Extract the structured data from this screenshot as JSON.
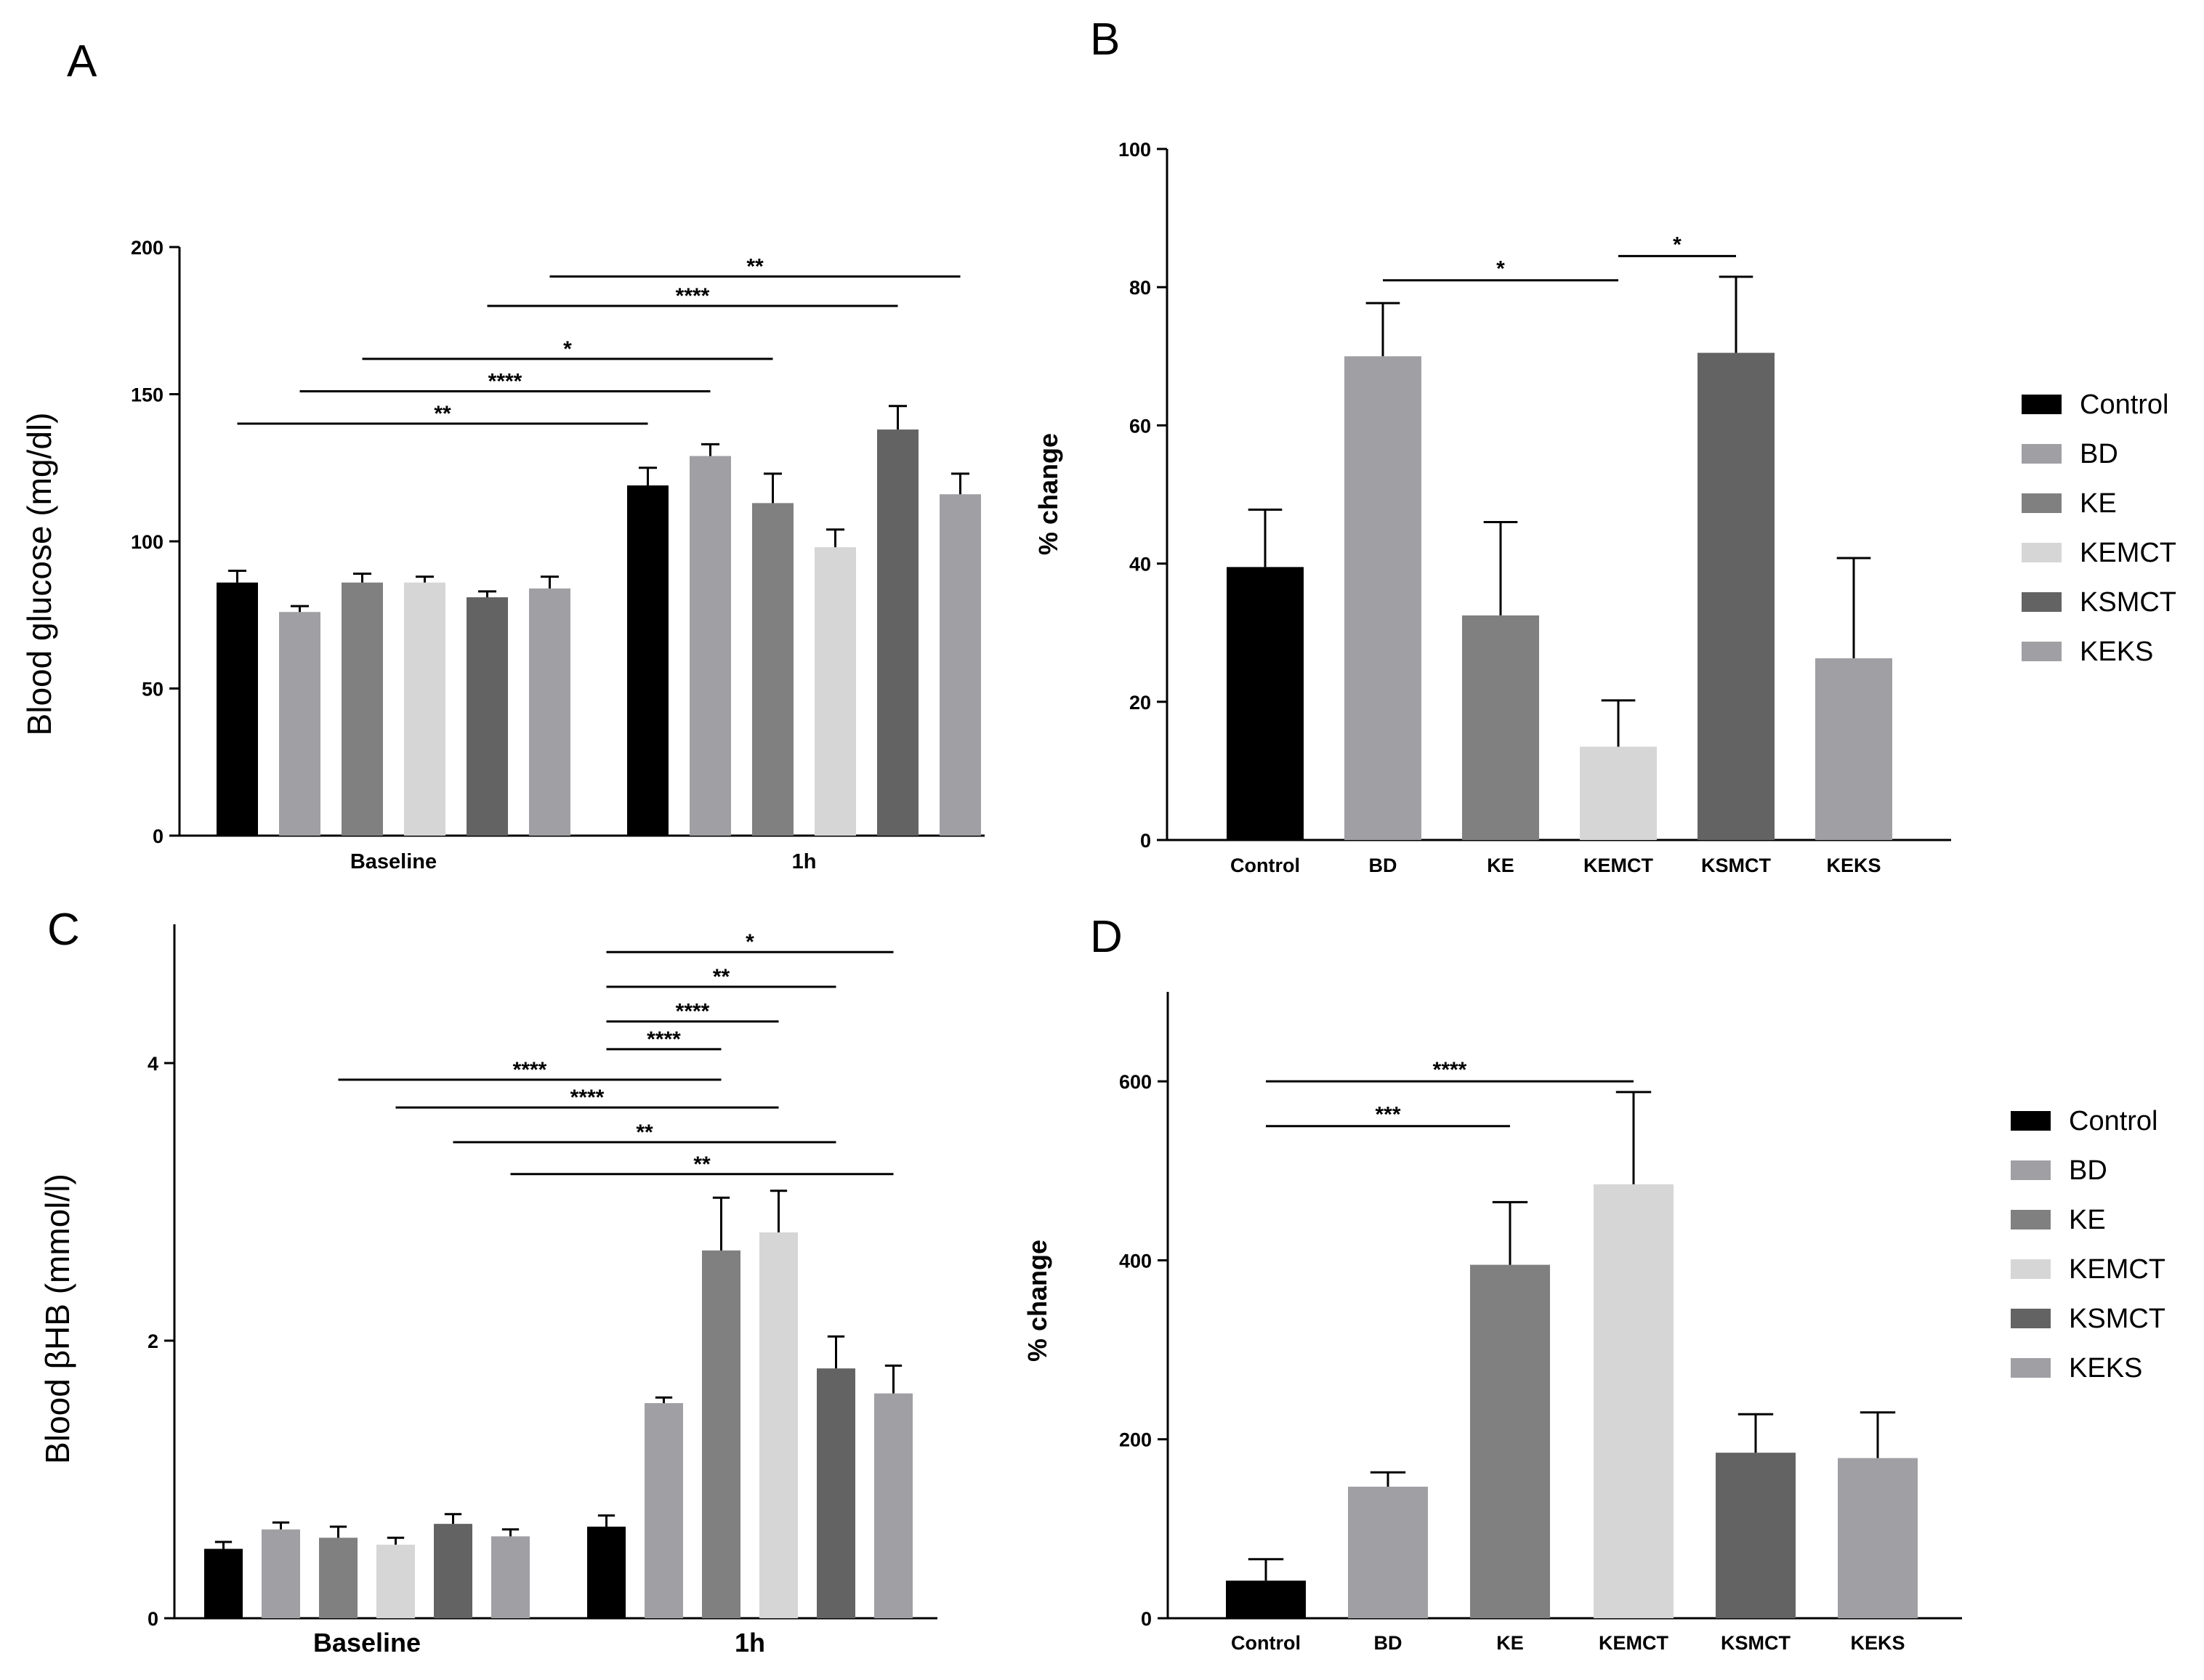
{
  "colors": {
    "Control": "#000000",
    "BD": "#a09fa4",
    "KE": "#808080",
    "KEMCT": "#d6d6d6",
    "KSMCT": "#636363",
    "KEKS": "#a09fa4"
  },
  "legend": [
    "Control",
    "BD",
    "KE",
    "KEMCT",
    "KSMCT",
    "KEKS"
  ],
  "chart_data": [
    {
      "panel": "A",
      "type": "bar",
      "ylabel": "Blood glucose (mg/dl)",
      "ylim": [
        0,
        200
      ],
      "yticks": [
        "0",
        "50",
        "100",
        "150",
        "200"
      ],
      "groups": [
        "Baseline",
        "1h"
      ],
      "series": [
        {
          "name": "Control",
          "values": [
            86,
            119
          ],
          "errors": [
            4,
            6
          ]
        },
        {
          "name": "BD",
          "values": [
            76,
            129
          ],
          "errors": [
            2,
            4
          ]
        },
        {
          "name": "KE",
          "values": [
            86,
            113
          ],
          "errors": [
            3,
            10
          ]
        },
        {
          "name": "KEMCT",
          "values": [
            86,
            98
          ],
          "errors": [
            2,
            6
          ]
        },
        {
          "name": "KSMCT",
          "values": [
            81,
            138
          ],
          "errors": [
            2,
            8
          ]
        },
        {
          "name": "KEKS",
          "values": [
            84,
            116
          ],
          "errors": [
            4,
            7
          ]
        }
      ],
      "significance": [
        {
          "from": [
            0,
            0
          ],
          "to": [
            1,
            0
          ],
          "y": 140,
          "label": "**"
        },
        {
          "from": [
            0,
            1
          ],
          "to": [
            1,
            1
          ],
          "y": 151,
          "label": "****"
        },
        {
          "from": [
            0,
            2
          ],
          "to": [
            1,
            2
          ],
          "y": 162,
          "label": "*"
        },
        {
          "from": [
            0,
            4
          ],
          "to": [
            1,
            4
          ],
          "y": 180,
          "label": "****"
        },
        {
          "from": [
            0,
            5
          ],
          "to": [
            1,
            5
          ],
          "y": 190,
          "label": "**"
        }
      ]
    },
    {
      "panel": "B",
      "type": "bar",
      "ylabel": "% change",
      "ylim": [
        0,
        100
      ],
      "yticks": [
        "0",
        "20",
        "40",
        "60",
        "80",
        "100"
      ],
      "categories": [
        "Control",
        "BD",
        "KE",
        "KEMCT",
        "KSMCT",
        "KEKS"
      ],
      "values": [
        39.5,
        70,
        32.5,
        13.5,
        70.5,
        26.3
      ],
      "errors": [
        8.3,
        7.7,
        13.5,
        6.7,
        11,
        14.5
      ],
      "significance": [
        {
          "from": 1,
          "to": 3,
          "y": 81,
          "label": "*"
        },
        {
          "from": 3,
          "to": 4,
          "y": 84.5,
          "label": "*"
        }
      ]
    },
    {
      "panel": "C",
      "type": "bar",
      "ylabel": "Blood βHB (mmol/l)",
      "ylim": [
        0,
        5
      ],
      "yticks": [
        "0",
        "2",
        "4"
      ],
      "groups": [
        "Baseline",
        "1h"
      ],
      "series": [
        {
          "name": "Control",
          "values": [
            0.5,
            0.66
          ],
          "errors": [
            0.05,
            0.08
          ]
        },
        {
          "name": "BD",
          "values": [
            0.64,
            1.55
          ],
          "errors": [
            0.05,
            0.04
          ]
        },
        {
          "name": "KE",
          "values": [
            0.58,
            2.65
          ],
          "errors": [
            0.08,
            0.38
          ]
        },
        {
          "name": "KEMCT",
          "values": [
            0.53,
            2.78
          ],
          "errors": [
            0.05,
            0.3
          ]
        },
        {
          "name": "KSMCT",
          "values": [
            0.68,
            1.8
          ],
          "errors": [
            0.07,
            0.23
          ]
        },
        {
          "name": "KEKS",
          "values": [
            0.59,
            1.62
          ],
          "errors": [
            0.05,
            0.2
          ]
        }
      ],
      "significance": [
        {
          "from": [
            0,
            2
          ],
          "to": [
            1,
            2
          ],
          "y": 3.88,
          "label": "****"
        },
        {
          "from": [
            0,
            3
          ],
          "to": [
            1,
            3
          ],
          "y": 3.68,
          "label": "****"
        },
        {
          "from": [
            0,
            4
          ],
          "to": [
            1,
            4
          ],
          "y": 3.43,
          "label": "**"
        },
        {
          "from": [
            0,
            5
          ],
          "to": [
            1,
            5
          ],
          "y": 3.2,
          "label": "**"
        },
        {
          "from": [
            1,
            0
          ],
          "to": [
            1,
            2
          ],
          "y": 4.1,
          "label": "****"
        },
        {
          "from": [
            1,
            0
          ],
          "to": [
            1,
            3
          ],
          "y": 4.3,
          "label": "****"
        },
        {
          "from": [
            1,
            0
          ],
          "to": [
            1,
            4
          ],
          "y": 4.55,
          "label": "**"
        },
        {
          "from": [
            1,
            0
          ],
          "to": [
            1,
            5
          ],
          "y": 4.8,
          "label": "*"
        }
      ]
    },
    {
      "panel": "D",
      "type": "bar",
      "ylabel": "% change",
      "ylim": [
        0,
        700
      ],
      "yticks": [
        "0",
        "200",
        "400",
        "600"
      ],
      "categories": [
        "Control",
        "BD",
        "KE",
        "KEMCT",
        "KSMCT",
        "KEKS"
      ],
      "values": [
        42,
        147,
        395,
        485,
        185,
        179
      ],
      "errors": [
        24,
        16,
        70,
        103,
        43,
        51
      ],
      "significance": [
        {
          "from": 0,
          "to": 2,
          "y": 550,
          "label": "***"
        },
        {
          "from": 0,
          "to": 3,
          "y": 600,
          "label": "****"
        }
      ]
    }
  ]
}
